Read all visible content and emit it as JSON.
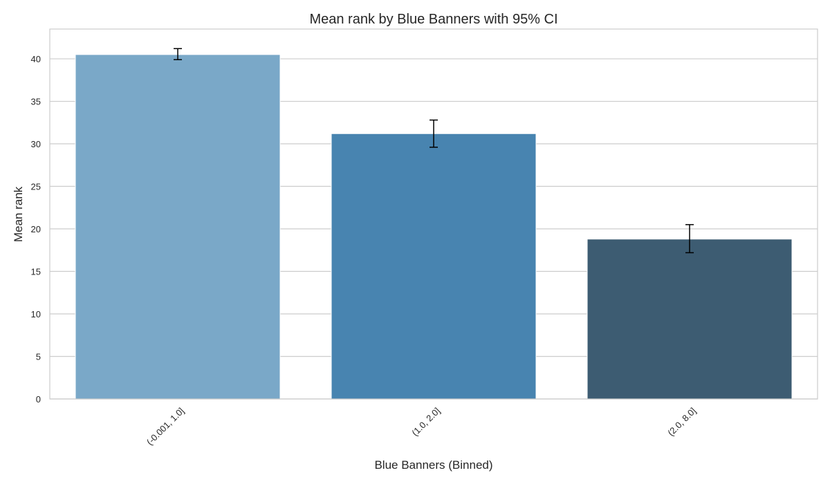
{
  "chart_data": {
    "type": "bar",
    "title": "Mean rank by Blue Banners with 95% CI",
    "xlabel": "Blue Banners (Binned)",
    "ylabel": "Mean rank",
    "categories": [
      "(-0.001, 1.0]",
      "(1.0, 2.0]",
      "(2.0, 8.0]"
    ],
    "values": [
      40.5,
      31.2,
      18.8
    ],
    "ci_low": [
      39.9,
      29.6,
      17.2
    ],
    "ci_high": [
      41.2,
      32.8,
      20.5
    ],
    "colors": [
      "#7aa8c8",
      "#4884b0",
      "#3d5c72"
    ],
    "ylim": [
      0,
      43.5
    ],
    "yticks": [
      0,
      5,
      10,
      15,
      20,
      25,
      30,
      35,
      40
    ],
    "grid": "y"
  }
}
